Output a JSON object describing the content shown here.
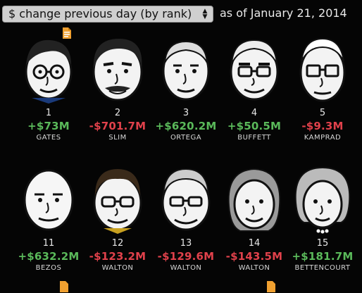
{
  "header": {
    "sort_select": "$ change previous day (by rank)",
    "as_of": "as of January 21, 2014"
  },
  "row1": [
    {
      "rank": "1",
      "change": "+$73M",
      "name": "GATES",
      "trend": "up"
    },
    {
      "rank": "2",
      "change": "-$701.7M",
      "name": "SLIM",
      "trend": "down"
    },
    {
      "rank": "3",
      "change": "+$620.2M",
      "name": "ORTEGA",
      "trend": "up"
    },
    {
      "rank": "4",
      "change": "+$50.5M",
      "name": "BUFFETT",
      "trend": "up"
    },
    {
      "rank": "5",
      "change": "-$9.3M",
      "name": "KAMPRAD",
      "trend": "down"
    }
  ],
  "row2": [
    {
      "rank": "11",
      "change": "+$632.2M",
      "name": "BEZOS",
      "trend": "up"
    },
    {
      "rank": "12",
      "change": "-$123.2M",
      "name": "WALTON",
      "trend": "down"
    },
    {
      "rank": "13",
      "change": "-$129.6M",
      "name": "WALTON",
      "trend": "down"
    },
    {
      "rank": "14",
      "change": "-$143.5M",
      "name": "WALTON",
      "trend": "down"
    },
    {
      "rank": "15",
      "change": "+$181.7M",
      "name": "BETTENCOURT",
      "trend": "up"
    }
  ],
  "colors": {
    "up": "#5ab95a",
    "down": "#e0414b",
    "note_icon": "#f0a030"
  },
  "icons": [
    "note-icon",
    "select-arrows-icon"
  ]
}
